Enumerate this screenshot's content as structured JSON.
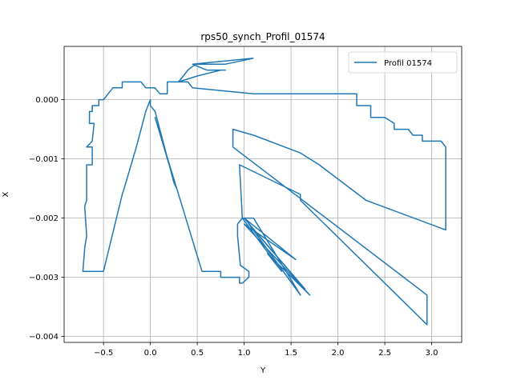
{
  "chart_data": {
    "type": "line",
    "title": "rps50_synch_Profil_01574",
    "xlabel": "Y",
    "ylabel": "X",
    "xlim": [
      -0.92,
      3.32
    ],
    "ylim": [
      -0.0041,
      0.0009
    ],
    "xticks": [
      -0.5,
      0.0,
      0.5,
      1.0,
      1.5,
      2.0,
      2.5,
      3.0
    ],
    "xtick_labels": [
      "−0.5",
      "0.0",
      "0.5",
      "1.0",
      "1.5",
      "2.0",
      "2.5",
      "3.0"
    ],
    "yticks": [
      0.0,
      -0.001,
      -0.002,
      -0.003,
      -0.004
    ],
    "ytick_labels": [
      "0.000",
      "−0.001",
      "−0.002",
      "−0.003",
      "−0.004"
    ],
    "grid": true,
    "legend_position": "top-right",
    "color": "#1f77b4",
    "series": [
      {
        "name": "Profil 01574",
        "points": [
          [
            1.1,
            0.0007
          ],
          [
            0.8,
            0.0006
          ],
          [
            0.6,
            0.0006
          ],
          [
            0.48,
            0.0006
          ],
          [
            0.4,
            0.0005
          ],
          [
            0.35,
            0.0004
          ],
          [
            0.3,
            0.0003
          ],
          [
            0.2,
            0.0003
          ],
          [
            0.18,
            0.0003
          ],
          [
            0.18,
            0.0001
          ],
          [
            0.1,
            0.0001
          ],
          [
            0.05,
            0.0002
          ],
          [
            -0.05,
            0.0002
          ],
          [
            -0.1,
            0.0003
          ],
          [
            -0.3,
            0.0003
          ],
          [
            -0.3,
            0.0002
          ],
          [
            -0.4,
            0.0002
          ],
          [
            -0.45,
            0.0001
          ],
          [
            -0.5,
            0.0
          ],
          [
            -0.55,
            0.0
          ],
          [
            -0.55,
            -0.0001
          ],
          [
            -0.62,
            -0.0001
          ],
          [
            -0.62,
            -0.0002
          ],
          [
            -0.65,
            -0.0002
          ],
          [
            -0.65,
            -0.0004
          ],
          [
            -0.6,
            -0.0004
          ],
          [
            -0.62,
            -0.0007
          ],
          [
            -0.68,
            -0.0008
          ],
          [
            -0.62,
            -0.0008
          ],
          [
            -0.62,
            -0.0011
          ],
          [
            -0.68,
            -0.0011
          ],
          [
            -0.68,
            -0.0017
          ],
          [
            -0.7,
            -0.0018
          ],
          [
            -0.68,
            -0.0023
          ],
          [
            -0.7,
            -0.0025
          ],
          [
            -0.72,
            -0.0029
          ],
          [
            -0.5,
            -0.0029
          ],
          [
            -0.3,
            -0.0016
          ],
          [
            -0.28,
            -0.0015
          ],
          [
            -0.15,
            -0.0008
          ],
          [
            -0.05,
            -0.0002
          ],
          [
            0.0,
            0.0
          ],
          [
            0.0,
            -0.0001
          ],
          [
            0.05,
            -0.0002
          ],
          [
            0.25,
            -0.0014
          ],
          [
            0.28,
            -0.0015
          ],
          [
            0.2,
            -0.0011
          ],
          [
            0.05,
            -0.0003
          ],
          [
            0.55,
            -0.0029
          ],
          [
            0.75,
            -0.0029
          ],
          [
            0.75,
            -0.003
          ],
          [
            0.95,
            -0.003
          ],
          [
            0.95,
            -0.0031
          ],
          [
            0.98,
            -0.0031
          ],
          [
            1.05,
            -0.003
          ],
          [
            1.05,
            -0.0029
          ],
          [
            0.96,
            -0.0028
          ],
          [
            0.93,
            -0.0023
          ],
          [
            0.93,
            -0.0021
          ],
          [
            0.98,
            -0.002
          ],
          [
            1.1,
            -0.002
          ],
          [
            1.6,
            -0.0033
          ],
          [
            1.05,
            -0.0021
          ],
          [
            1.65,
            -0.0032
          ],
          [
            1.0,
            -0.002
          ],
          [
            1.55,
            -0.0027
          ],
          [
            1.0,
            -0.0021
          ],
          [
            1.7,
            -0.0033
          ],
          [
            1.25,
            -0.0026
          ],
          [
            1.4,
            -0.0029
          ],
          [
            0.98,
            -0.002
          ],
          [
            0.95,
            -0.0011
          ],
          [
            1.6,
            -0.0016
          ],
          [
            1.6,
            -0.0017
          ],
          [
            2.95,
            -0.0038
          ],
          [
            2.95,
            -0.0033
          ],
          [
            0.88,
            -0.0008
          ],
          [
            0.88,
            -0.0005
          ],
          [
            1.1,
            -0.0006
          ],
          [
            1.6,
            -0.0009
          ],
          [
            1.8,
            -0.0011
          ],
          [
            2.3,
            -0.0017
          ],
          [
            3.15,
            -0.0022
          ],
          [
            3.15,
            -0.0008
          ],
          [
            3.1,
            -0.0007
          ],
          [
            2.9,
            -0.0007
          ],
          [
            2.9,
            -0.0006
          ],
          [
            2.8,
            -0.0006
          ],
          [
            2.75,
            -0.0005
          ],
          [
            2.6,
            -0.0005
          ],
          [
            2.6,
            -0.0004
          ],
          [
            2.5,
            -0.0003
          ],
          [
            2.35,
            -0.0003
          ],
          [
            2.35,
            -0.0001
          ],
          [
            2.2,
            -0.0001
          ],
          [
            2.2,
            0.0001
          ],
          [
            1.1,
            0.0001
          ],
          [
            0.45,
            0.0002
          ],
          [
            0.4,
            0.0003
          ],
          [
            0.3,
            0.0003
          ],
          [
            0.5,
            0.0004
          ],
          [
            0.75,
            0.0005
          ],
          [
            0.8,
            0.0005
          ],
          [
            0.6,
            0.0005
          ],
          [
            0.45,
            0.0006
          ],
          [
            1.1,
            0.0007
          ]
        ]
      }
    ]
  }
}
